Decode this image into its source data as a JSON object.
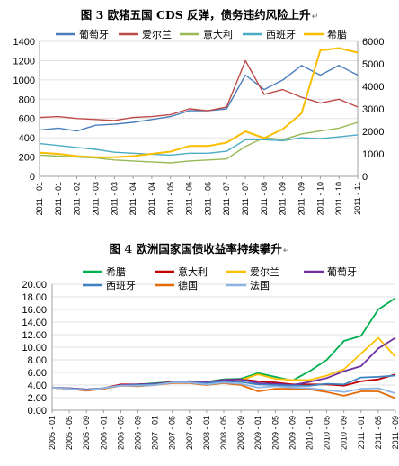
{
  "captions": {
    "fig3": "图 3 欧猪五国 CDS 反弹，债务违约风险上升",
    "fig4": "图 4 欧洲国家国债收益率持续攀升"
  },
  "return_mark": "↵",
  "chart_data": [
    {
      "type": "line",
      "title": "图 3 欧猪五国 CDS 反弹，债务违约风险上升",
      "dual_axis": true,
      "ylim_left": [
        0,
        1400
      ],
      "yticks_left": [
        0,
        200,
        400,
        600,
        800,
        1000,
        1200,
        1400
      ],
      "ylim_right": [
        0,
        6000
      ],
      "yticks_right": [
        0,
        1000,
        2000,
        3000,
        4000,
        5000,
        6000
      ],
      "x_ticks": [
        "2011 - 01",
        "2011 - 01",
        "2011 - 02",
        "2011 - 03",
        "2011 - 03",
        "2011 - 04",
        "2011 - 04",
        "2011 - 05",
        "2011 - 06",
        "2011 - 06",
        "2011 - 07",
        "2011 - 07",
        "2011 - 08",
        "2011 - 09",
        "2011 - 09",
        "2011 - 10",
        "2011 - 10",
        "2011 - 11"
      ],
      "grid": true,
      "legend_position": "top",
      "series": [
        {
          "name": "葡萄牙",
          "color": "#4A7EBB",
          "axis": "left",
          "values": [
            480,
            500,
            470,
            530,
            540,
            560,
            590,
            620,
            680,
            680,
            700,
            1050,
            900,
            1000,
            1150,
            1050,
            1150,
            1050
          ]
        },
        {
          "name": "爱尔兰",
          "color": "#BE4B48",
          "axis": "left",
          "values": [
            610,
            620,
            600,
            590,
            580,
            610,
            620,
            640,
            700,
            680,
            720,
            1200,
            850,
            900,
            820,
            760,
            800,
            720
          ]
        },
        {
          "name": "意大利",
          "color": "#98B954",
          "axis": "left",
          "values": [
            220,
            210,
            200,
            190,
            170,
            160,
            150,
            140,
            160,
            170,
            180,
            310,
            400,
            380,
            440,
            470,
            500,
            560
          ]
        },
        {
          "name": "西班牙",
          "color": "#4BACC6",
          "axis": "left",
          "values": [
            340,
            320,
            300,
            280,
            250,
            240,
            230,
            220,
            240,
            240,
            260,
            380,
            380,
            370,
            400,
            390,
            410,
            430
          ]
        },
        {
          "name": "希腊",
          "color": "#F9BE00",
          "axis": "right",
          "values": [
            1050,
            1000,
            900,
            850,
            850,
            900,
            1000,
            1100,
            1350,
            1350,
            1500,
            2000,
            1700,
            2100,
            2800,
            5600,
            5700,
            5500
          ]
        }
      ]
    },
    {
      "type": "line",
      "title": "图 4 欧洲国家国债收益率持续攀升",
      "ylim": [
        0,
        20
      ],
      "yticks": [
        "0.00",
        "2.00",
        "4.00",
        "6.00",
        "8.00",
        "10.00",
        "12.00",
        "14.00",
        "16.00",
        "18.00",
        "20.00"
      ],
      "x_ticks": [
        "2005 - 01",
        "2005 - 05",
        "2005 - 09",
        "2006 - 01",
        "2006 - 05",
        "2006 - 09",
        "2007 - 01",
        "2007 - 05",
        "2007 - 09",
        "2008 - 01",
        "2008 - 05",
        "2008 - 09",
        "2009 - 01",
        "2009 - 05",
        "2009 - 09",
        "2010 - 01",
        "2010 - 05",
        "2010 - 09",
        "2011 - 01",
        "2011 - 05",
        "2011 - 09"
      ],
      "grid": true,
      "legend_position": "top",
      "series": [
        {
          "name": "希腊",
          "color": "#00B050",
          "values": [
            3.6,
            3.5,
            3.3,
            3.5,
            4.0,
            4.1,
            4.3,
            4.5,
            4.6,
            4.5,
            4.9,
            5.0,
            5.9,
            5.3,
            4.7,
            6.2,
            8.0,
            11.0,
            11.8,
            16.0,
            17.8
          ]
        },
        {
          "name": "意大利",
          "color": "#C00000",
          "values": [
            3.6,
            3.4,
            3.2,
            3.5,
            4.1,
            4.1,
            4.2,
            4.5,
            4.6,
            4.5,
            4.8,
            4.9,
            4.6,
            4.4,
            4.1,
            4.1,
            4.1,
            3.9,
            4.6,
            4.9,
            5.7
          ]
        },
        {
          "name": "爱尔兰",
          "color": "#FFC000",
          "values": [
            3.6,
            3.4,
            3.2,
            3.5,
            4.0,
            4.0,
            4.1,
            4.4,
            4.5,
            4.5,
            4.7,
            4.8,
            5.7,
            5.0,
            4.8,
            4.8,
            5.5,
            6.5,
            9.0,
            11.5,
            8.5
          ]
        },
        {
          "name": "葡萄牙",
          "color": "#7030A0",
          "values": [
            3.6,
            3.5,
            3.3,
            3.5,
            4.0,
            4.1,
            4.2,
            4.4,
            4.5,
            4.5,
            4.8,
            4.9,
            4.3,
            4.2,
            4.0,
            4.5,
            5.1,
            6.2,
            7.0,
            9.8,
            11.5
          ]
        },
        {
          "name": "西班牙",
          "color": "#3F81C2",
          "values": [
            3.6,
            3.4,
            3.2,
            3.5,
            3.9,
            4.0,
            4.1,
            4.4,
            4.4,
            4.3,
            4.6,
            4.5,
            4.1,
            4.0,
            3.9,
            3.9,
            4.2,
            4.1,
            5.2,
            5.3,
            5.5
          ]
        },
        {
          "name": "德国",
          "color": "#E36C09",
          "values": [
            3.6,
            3.4,
            3.1,
            3.4,
            3.9,
            3.8,
            4.0,
            4.3,
            4.3,
            4.0,
            4.3,
            4.0,
            3.0,
            3.4,
            3.4,
            3.3,
            2.9,
            2.3,
            3.0,
            3.0,
            1.9
          ]
        },
        {
          "name": "法国",
          "color": "#8EB4E3",
          "values": [
            3.6,
            3.4,
            3.2,
            3.5,
            3.9,
            3.9,
            4.0,
            4.4,
            4.4,
            4.1,
            4.4,
            4.2,
            3.6,
            3.8,
            3.6,
            3.5,
            3.2,
            2.9,
            3.4,
            3.5,
            2.7
          ]
        }
      ]
    }
  ]
}
